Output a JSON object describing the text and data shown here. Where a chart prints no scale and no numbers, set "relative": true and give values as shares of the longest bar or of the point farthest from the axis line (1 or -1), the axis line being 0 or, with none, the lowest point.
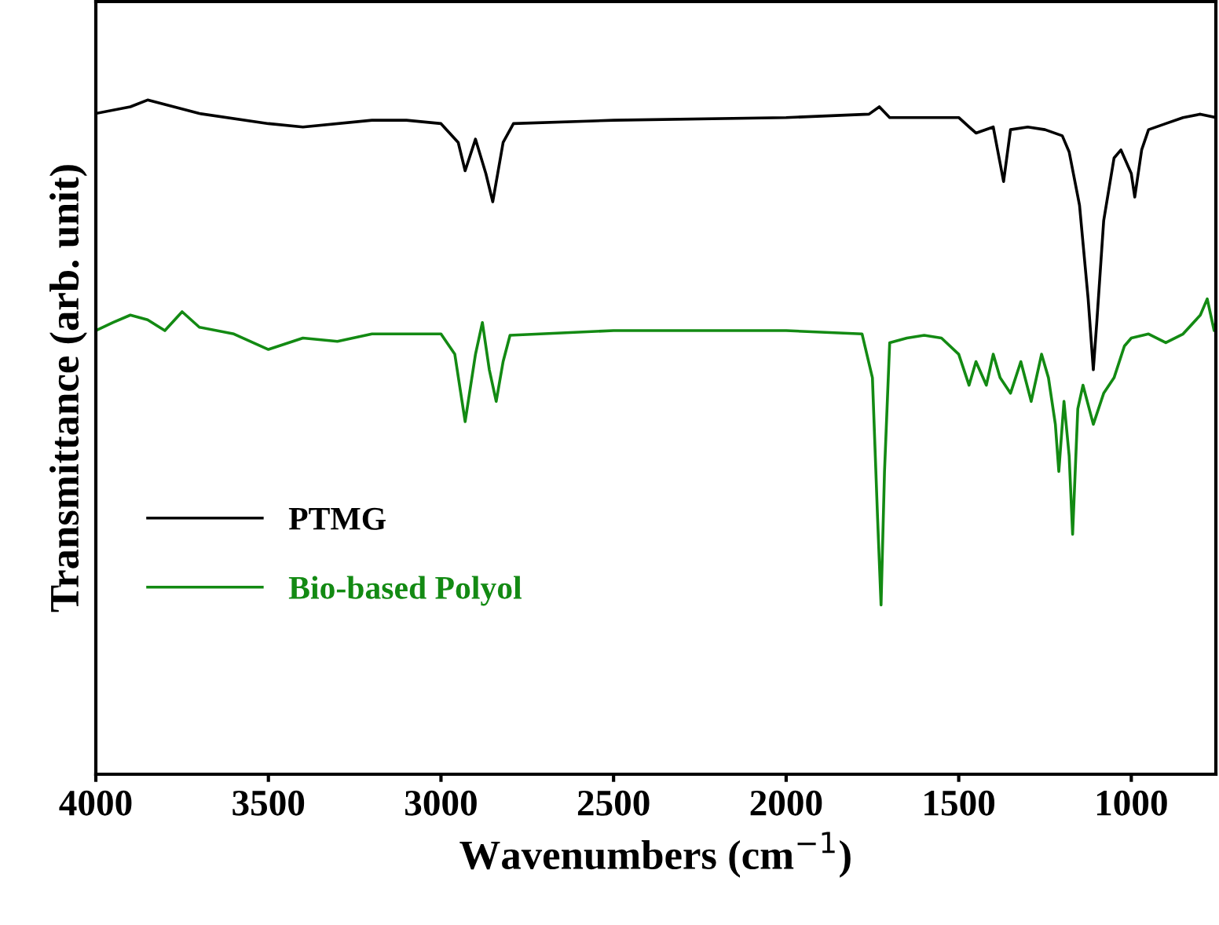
{
  "chart_data": {
    "type": "line",
    "relative": true,
    "xlabel": "Wavenumbers (cm$^{−1}$)",
    "ylabel": "Transmittance (arb. unit)",
    "xlim": [
      4000,
      755
    ],
    "xticks": [
      4000,
      3500,
      3000,
      2500,
      2000,
      1500,
      1000
    ],
    "tick_labels": "x",
    "legend": "bottom left",
    "grid": false,
    "marker": "none",
    "line_style": "solid",
    "series": [
      {
        "name": "PTMG",
        "color": "#000000",
        "x": [
          4000,
          3900,
          3850,
          3700,
          3500,
          3400,
          3200,
          3100,
          3000,
          2950,
          2930,
          2900,
          2870,
          2850,
          2820,
          2790,
          2500,
          2000,
          1760,
          1730,
          1700,
          1500,
          1470,
          1450,
          1400,
          1370,
          1350,
          1300,
          1250,
          1200,
          1180,
          1150,
          1125,
          1110,
          1100,
          1080,
          1050,
          1030,
          1000,
          990,
          970,
          950,
          900,
          850,
          800,
          755
        ],
        "values": [
          0.98,
          0.99,
          1.0,
          0.98,
          0.965,
          0.96,
          0.97,
          0.97,
          0.965,
          0.937,
          0.895,
          0.942,
          0.891,
          0.849,
          0.937,
          0.965,
          0.97,
          0.974,
          0.979,
          0.99,
          0.974,
          0.974,
          0.96,
          0.951,
          0.96,
          0.879,
          0.956,
          0.96,
          0.956,
          0.947,
          0.923,
          0.844,
          0.705,
          0.6,
          0.67,
          0.821,
          0.914,
          0.926,
          0.891,
          0.856,
          0.926,
          0.956,
          0.965,
          0.974,
          0.979,
          0.974
        ]
      },
      {
        "name": "Bio-based Polyol",
        "color": "#138a13",
        "x": [
          4000,
          3950,
          3900,
          3850,
          3800,
          3750,
          3700,
          3600,
          3500,
          3400,
          3300,
          3200,
          3100,
          3000,
          2960,
          2930,
          2900,
          2880,
          2860,
          2840,
          2820,
          2800,
          2500,
          2000,
          1780,
          1750,
          1735,
          1725,
          1715,
          1700,
          1650,
          1600,
          1550,
          1500,
          1470,
          1450,
          1420,
          1400,
          1380,
          1350,
          1320,
          1290,
          1260,
          1240,
          1220,
          1210,
          1195,
          1180,
          1170,
          1155,
          1140,
          1110,
          1080,
          1050,
          1020,
          1000,
          950,
          900,
          850,
          800,
          780,
          760,
          755
        ],
        "values": [
          0.658,
          0.67,
          0.681,
          0.674,
          0.658,
          0.686,
          0.663,
          0.653,
          0.63,
          0.647,
          0.642,
          0.653,
          0.653,
          0.653,
          0.623,
          0.523,
          0.623,
          0.67,
          0.6,
          0.553,
          0.612,
          0.651,
          0.658,
          0.658,
          0.653,
          0.588,
          0.379,
          0.251,
          0.449,
          0.64,
          0.647,
          0.651,
          0.647,
          0.623,
          0.577,
          0.612,
          0.577,
          0.623,
          0.588,
          0.565,
          0.612,
          0.553,
          0.623,
          0.588,
          0.519,
          0.449,
          0.553,
          0.472,
          0.356,
          0.542,
          0.577,
          0.519,
          0.565,
          0.588,
          0.635,
          0.647,
          0.653,
          0.64,
          0.653,
          0.681,
          0.705,
          0.658,
          0.67
        ]
      }
    ]
  }
}
